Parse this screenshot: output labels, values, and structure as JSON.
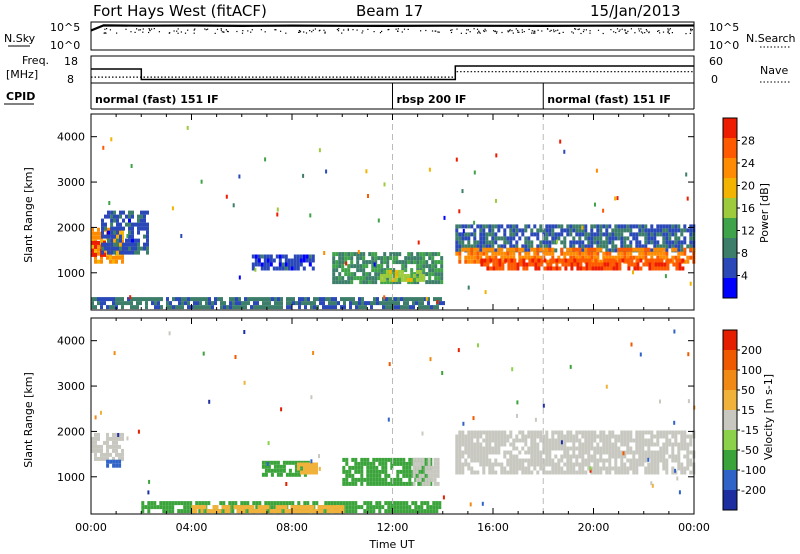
{
  "header": {
    "station": "Fort Hays West (fitACF)",
    "beam": "Beam 17",
    "date": "15/Jan/2013"
  },
  "labels": {
    "nsky": "N.Sky",
    "nsearch": "N.Search",
    "freq_top": "Freq.",
    "freq_unit": "[MHz]",
    "nave": "Nave",
    "cpid": "CPID",
    "xlabel": "Time UT"
  },
  "ticks": {
    "noise_left": [
      "10^5",
      "10^0"
    ],
    "noise_right": [
      "10^5",
      "10^0"
    ],
    "freq_left": [
      "18",
      "8"
    ],
    "nave_right": [
      "60",
      "0"
    ]
  },
  "cpid_segments": [
    {
      "label": "normal (fast) 151 IF",
      "start": 0.0,
      "end": 12.0
    },
    {
      "label": "rbsp 200 IF",
      "start": 12.0,
      "end": 18.0
    },
    {
      "label": "normal (fast) 151 IF",
      "start": 18.0,
      "end": 24.0
    }
  ],
  "colors": {
    "power_scale": [
      "#0000ff",
      "#2a48b8",
      "#3c7e6a",
      "#3fa34a",
      "#9ecb3c",
      "#f2b400",
      "#ff8c00",
      "#ff5a00",
      "#ee1c00"
    ],
    "velocity_scale": [
      "#1d2fa0",
      "#2f63c8",
      "#3aa43a",
      "#8bd24a",
      "#c8c8c0",
      "#f0b23a",
      "#f08a14",
      "#ef5a00",
      "#e61e00"
    ],
    "grid": "#bbbbbb"
  },
  "chart_data": [
    {
      "type": "line",
      "name": "noise",
      "ylabel_left": "N.Sky",
      "ylabel_right": "N.Search",
      "yscale": "log",
      "ylim": [
        1,
        100000
      ],
      "x": [
        0,
        0.5,
        2,
        4,
        6,
        8,
        10,
        12,
        14,
        16,
        18,
        20,
        22,
        24
      ],
      "series": [
        {
          "name": "N.Sky",
          "values": [
            3000,
            25000,
            22000,
            24000,
            20000,
            23000,
            21000,
            20000,
            22000,
            21000,
            20000,
            22000,
            23000,
            24000
          ]
        }
      ]
    },
    {
      "type": "line",
      "name": "frequency",
      "ylabel_left": "Freq. [MHz]",
      "ylabel_right": "Nave",
      "ylim": [
        8,
        18
      ],
      "x": [
        0,
        2,
        2,
        12,
        12,
        14.5,
        14.5,
        24
      ],
      "series": [
        {
          "name": "Freq.",
          "values": [
            13.2,
            13.2,
            9.3,
            9.3,
            9.3,
            9.3,
            14.3,
            14.3
          ]
        },
        {
          "name": "Nave",
          "values": [
            10.2,
            10.2,
            10.2,
            10.2,
            10.2,
            10.2,
            12.2,
            12.2
          ]
        }
      ]
    },
    {
      "type": "heatmap",
      "name": "power",
      "ylabel": "Slant Range [km]",
      "colorbar_label": "Power [dB]",
      "colorbar_ticks": [
        "28",
        "24",
        "20",
        "16",
        "12",
        "8",
        "4"
      ],
      "clim": [
        0,
        32
      ],
      "xlim": [
        0,
        24
      ],
      "ylim": [
        180,
        4500
      ],
      "yticks": [
        "4000",
        "3000",
        "2000",
        "1000"
      ],
      "regions": [
        {
          "t0": 0.0,
          "t1": 1.3,
          "r0": 1200,
          "r1": 1950,
          "value": 22
        },
        {
          "t0": 0.0,
          "t1": 0.5,
          "r0": 1350,
          "r1": 1650,
          "value": 30
        },
        {
          "t0": 0.4,
          "t1": 2.2,
          "r0": 1400,
          "r1": 2300,
          "value": 6
        },
        {
          "t0": 6.4,
          "t1": 8.8,
          "r0": 1050,
          "r1": 1400,
          "value": 5
        },
        {
          "t0": 9.6,
          "t1": 14.0,
          "r0": 750,
          "r1": 1450,
          "value": 10
        },
        {
          "t0": 11.5,
          "t1": 13.2,
          "r0": 800,
          "r1": 1050,
          "value": 16
        },
        {
          "t0": 14.5,
          "t1": 24.0,
          "r0": 1450,
          "r1": 2000,
          "value": 7
        },
        {
          "t0": 14.5,
          "t1": 24.0,
          "r0": 1200,
          "r1": 1550,
          "value": 24
        },
        {
          "t0": 15.5,
          "t1": 23.5,
          "r0": 1050,
          "r1": 1300,
          "value": 28
        },
        {
          "t0": 0.0,
          "t1": 14.0,
          "r0": 200,
          "r1": 380,
          "value": 8
        }
      ]
    },
    {
      "type": "heatmap",
      "name": "velocity",
      "ylabel": "Slant Range [km]",
      "colorbar_label": "Velocity [m s-1]",
      "colorbar_ticks": [
        "200",
        "100",
        "50",
        "15",
        "-15",
        "-50",
        "-100",
        "-200"
      ],
      "clim": [
        -250,
        250
      ],
      "xlim": [
        0,
        24
      ],
      "ylim": [
        180,
        4500
      ],
      "yticks": [
        "4000",
        "3000",
        "2000",
        "1000"
      ],
      "xticks": [
        "00:00",
        "04:00",
        "08:00",
        "12:00",
        "16:00",
        "20:00",
        "00:00"
      ],
      "regions": [
        {
          "t0": 0.0,
          "t1": 1.2,
          "r0": 1350,
          "r1": 1900,
          "value": 0
        },
        {
          "t0": 0.6,
          "t1": 1.1,
          "r0": 1200,
          "r1": 1330,
          "value": -120
        },
        {
          "t0": 6.8,
          "t1": 8.6,
          "r0": 1000,
          "r1": 1300,
          "value": -60
        },
        {
          "t0": 8.2,
          "t1": 9.0,
          "r0": 1050,
          "r1": 1300,
          "value": 40
        },
        {
          "t0": 10.0,
          "t1": 13.5,
          "r0": 800,
          "r1": 1400,
          "value": -60
        },
        {
          "t0": 12.8,
          "t1": 13.8,
          "r0": 800,
          "r1": 1350,
          "value": 0
        },
        {
          "t0": 14.5,
          "t1": 24.0,
          "r0": 1050,
          "r1": 2000,
          "value": 0
        },
        {
          "t0": 2.0,
          "t1": 14.0,
          "r0": 200,
          "r1": 450,
          "value": -70
        },
        {
          "t0": 4.0,
          "t1": 10.0,
          "r0": 200,
          "r1": 320,
          "value": 40
        }
      ]
    }
  ]
}
